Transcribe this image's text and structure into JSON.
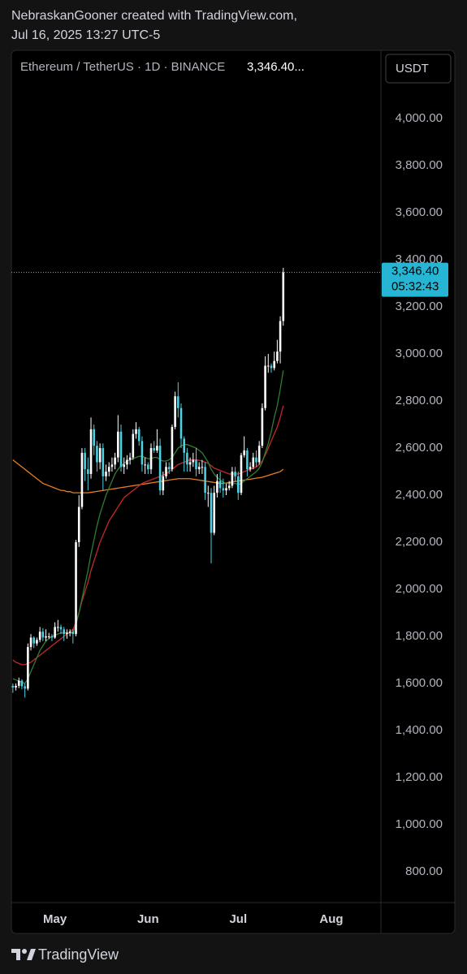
{
  "chart_data": {
    "type": "candlestick",
    "title": "NebraskanGooner created with TradingView.com,",
    "subtitle": "Jul 16, 2025 13:27 UTC-5",
    "symbol": "Ethereum / TetherUS · 1D · BINANCE",
    "legend_price": "3,346.40...",
    "currency_button": "USDT",
    "brand": "TradingView",
    "last_price": {
      "value": 3346.4,
      "label": "3,346.40"
    },
    "countdown": "05:32:43",
    "up_color": "#ffffff",
    "down_color": "#4dd0e1",
    "ylim": [
      669,
      4290
    ],
    "yticks": [
      {
        "value": 800,
        "label": "800.00"
      },
      {
        "value": 1000,
        "label": "1,000.00"
      },
      {
        "value": 1200,
        "label": "1,200.00"
      },
      {
        "value": 1400,
        "label": "1,400.00"
      },
      {
        "value": 1600,
        "label": "1,600.00"
      },
      {
        "value": 1800,
        "label": "1,800.00"
      },
      {
        "value": 2000,
        "label": "2,000.00"
      },
      {
        "value": 2200,
        "label": "2,200.00"
      },
      {
        "value": 2400,
        "label": "2,400.00"
      },
      {
        "value": 2600,
        "label": "2,600.00"
      },
      {
        "value": 2800,
        "label": "2,800.00"
      },
      {
        "value": 3000,
        "label": "3,000.00"
      },
      {
        "value": 3200,
        "label": "3,200.00"
      },
      {
        "value": 3400,
        "label": "3,400.00"
      },
      {
        "value": 3600,
        "label": "3,600.00"
      },
      {
        "value": 3800,
        "label": "3,800.00"
      },
      {
        "value": 4000,
        "label": "4,000.00"
      }
    ],
    "grid": false,
    "categories": [
      null,
      null,
      null,
      null,
      null,
      null,
      null,
      null,
      null,
      null,
      null,
      null,
      null,
      null,
      "May",
      null,
      null,
      null,
      null,
      null,
      null,
      null,
      null,
      null,
      null,
      null,
      null,
      null,
      null,
      null,
      null,
      null,
      null,
      null,
      null,
      null,
      null,
      null,
      null,
      null,
      null,
      null,
      null,
      null,
      null,
      "Jun",
      null,
      null,
      null,
      null,
      null,
      null,
      null,
      null,
      null,
      null,
      null,
      null,
      null,
      null,
      null,
      null,
      null,
      null,
      null,
      null,
      null,
      null,
      null,
      null,
      null,
      null,
      null,
      null,
      null,
      "Jul",
      null,
      null,
      null,
      null,
      null,
      null,
      null,
      null,
      null,
      null,
      null,
      null,
      null,
      null,
      null,
      null,
      null,
      null,
      null,
      null,
      null,
      null,
      null,
      null,
      null,
      null,
      null,
      null,
      null,
      null,
      "Aug",
      null,
      null,
      null,
      null,
      null,
      null,
      null,
      null,
      null,
      null,
      null,
      null,
      null,
      null,
      null,
      null
    ],
    "open": [
      1590,
      1583,
      1590,
      1612,
      1588,
      1578,
      1755,
      1795,
      1770,
      1785,
      1820,
      1795,
      1800,
      1800,
      1795,
      1840,
      1840,
      1830,
      1810,
      1815,
      1820,
      1810,
      2200,
      2350,
      2580,
      2510,
      2490,
      2680,
      2610,
      2540,
      2600,
      2480,
      2500,
      2520,
      2530,
      2560,
      2670,
      2520,
      2530,
      2550,
      2560,
      2660,
      2680,
      2630,
      2530,
      2530,
      2510,
      2600,
      2590,
      2610,
      2420,
      2480,
      2520,
      2510,
      2690,
      2820,
      2770,
      2640,
      2580,
      2530,
      2540,
      2550,
      2510,
      2520,
      2520,
      2410,
      2410,
      2240,
      2410,
      2460,
      2430,
      2420,
      2430,
      2440,
      2500,
      2480,
      2410,
      2570,
      2590,
      2510,
      2520,
      2560,
      2540,
      2610,
      2770,
      2950,
      2950,
      2940,
      2970,
      3010,
      3140,
      null,
      null,
      null,
      null,
      null,
      null,
      null,
      null,
      null,
      null,
      null,
      null,
      null,
      null,
      null,
      null,
      null,
      null,
      null,
      null,
      null,
      null,
      null,
      null,
      null,
      null,
      null,
      null,
      null,
      null,
      null,
      null
    ],
    "high": [
      1600,
      1600,
      1625,
      1618,
      1600,
      1770,
      1810,
      1800,
      1795,
      1840,
      1835,
      1830,
      1815,
      1810,
      1860,
      1870,
      1850,
      1840,
      1830,
      1830,
      1830,
      2210,
      2400,
      2600,
      2600,
      2560,
      2730,
      2700,
      2630,
      2620,
      2620,
      2530,
      2540,
      2560,
      2580,
      2740,
      2700,
      2560,
      2570,
      2580,
      2680,
      2710,
      2690,
      2650,
      2560,
      2540,
      2620,
      2630,
      2680,
      2640,
      2500,
      2540,
      2540,
      2700,
      2840,
      2880,
      2790,
      2650,
      2600,
      2560,
      2580,
      2600,
      2540,
      2550,
      2540,
      2440,
      2430,
      2440,
      2490,
      2500,
      2470,
      2450,
      2460,
      2520,
      2520,
      2500,
      2580,
      2650,
      2600,
      2540,
      2580,
      2590,
      2630,
      2790,
      2990,
      3000,
      2960,
      3010,
      3060,
      3160,
      3366,
      null,
      null,
      null,
      null,
      null,
      null,
      null,
      null,
      null,
      null,
      null,
      null,
      null,
      null,
      null,
      null,
      null,
      null,
      null,
      null,
      null,
      null,
      null,
      null,
      null,
      null,
      null,
      null,
      null,
      null,
      null,
      null
    ],
    "low": [
      1560,
      1570,
      1580,
      1575,
      1540,
      1570,
      1740,
      1750,
      1760,
      1775,
      1780,
      1780,
      1790,
      1780,
      1790,
      1820,
      1810,
      1780,
      1790,
      1800,
      1770,
      1800,
      2180,
      2340,
      2460,
      2420,
      2470,
      2570,
      2500,
      2510,
      2420,
      2460,
      2480,
      2500,
      2510,
      2540,
      2500,
      2490,
      2510,
      2530,
      2550,
      2640,
      2610,
      2500,
      2490,
      2490,
      2490,
      2580,
      2580,
      2400,
      2400,
      2470,
      2490,
      2500,
      2680,
      2730,
      2600,
      2500,
      2500,
      2500,
      2520,
      2480,
      2490,
      2490,
      2380,
      2350,
      2110,
      2230,
      2390,
      2410,
      2390,
      2400,
      2420,
      2430,
      2460,
      2380,
      2400,
      2560,
      2480,
      2500,
      2510,
      2520,
      2530,
      2600,
      2760,
      2920,
      2920,
      2930,
      2960,
      2960,
      3120,
      null,
      null,
      null,
      null,
      null,
      null,
      null,
      null,
      null,
      null,
      null,
      null,
      null,
      null,
      null,
      null,
      null,
      null,
      null,
      null,
      null,
      null,
      null,
      null,
      null,
      null,
      null,
      null,
      null,
      null,
      null,
      null
    ],
    "close": [
      1583,
      1590,
      1612,
      1588,
      1578,
      1755,
      1795,
      1770,
      1785,
      1820,
      1795,
      1800,
      1800,
      1795,
      1840,
      1840,
      1830,
      1810,
      1815,
      1820,
      1810,
      2200,
      2350,
      2580,
      2510,
      2490,
      2680,
      2610,
      2540,
      2600,
      2480,
      2500,
      2520,
      2530,
      2560,
      2670,
      2520,
      2530,
      2550,
      2560,
      2660,
      2680,
      2630,
      2530,
      2530,
      2510,
      2600,
      2590,
      2610,
      2420,
      2480,
      2520,
      2510,
      2690,
      2820,
      2770,
      2640,
      2580,
      2530,
      2540,
      2550,
      2510,
      2520,
      2520,
      2410,
      2410,
      2240,
      2410,
      2460,
      2430,
      2420,
      2430,
      2440,
      2500,
      2480,
      2410,
      2570,
      2590,
      2510,
      2520,
      2560,
      2540,
      2610,
      2770,
      2950,
      2950,
      2940,
      2970,
      3010,
      3140,
      3346.4,
      null,
      null,
      null,
      null,
      null,
      null,
      null,
      null,
      null,
      null,
      null,
      null,
      null,
      null,
      null,
      null,
      null,
      null,
      null,
      null,
      null,
      null,
      null,
      null,
      null,
      null,
      null,
      null,
      null,
      null,
      null,
      null
    ],
    "lines": [
      {
        "color": "#e67e22",
        "values": [
          2550,
          2540,
          2530,
          2520,
          2510,
          2500,
          2490,
          2480,
          2470,
          2460,
          2450,
          2445,
          2440,
          2435,
          2430,
          2425,
          2420,
          2420,
          2415,
          2415,
          2410,
          2410,
          2410,
          2410,
          2410,
          2410,
          2412,
          2414,
          2416,
          2418,
          2420,
          2422,
          2424,
          2426,
          2428,
          2430,
          2432,
          2434,
          2436,
          2438,
          2440,
          2442,
          2444,
          2446,
          2448,
          2450,
          2452,
          2454,
          2456,
          2458,
          2460,
          2462,
          2464,
          2466,
          2468,
          2470,
          2470,
          2470,
          2470,
          2470,
          2468,
          2466,
          2464,
          2462,
          2460,
          2458,
          2456,
          2454,
          2452,
          2450,
          2450,
          2452,
          2454,
          2456,
          2458,
          2460,
          2462,
          2464,
          2466,
          2468,
          2470,
          2472,
          2474,
          2476,
          2480,
          2484,
          2488,
          2492,
          2496,
          2500,
          2510,
          null,
          null,
          null,
          null,
          null,
          null,
          null,
          null,
          null,
          null,
          null,
          null,
          null,
          null,
          null,
          null,
          null,
          null,
          null,
          null,
          null,
          null,
          null,
          null,
          null,
          null,
          null,
          null,
          null,
          null,
          null,
          null
        ]
      },
      {
        "color": "#c62828",
        "values": [
          1700,
          1690,
          1685,
          1680,
          1680,
          1685,
          1690,
          1700,
          1710,
          1720,
          1730,
          1740,
          1750,
          1760,
          1770,
          1780,
          1790,
          1800,
          1810,
          1820,
          1830,
          1860,
          1900,
          1950,
          1990,
          2030,
          2080,
          2120,
          2160,
          2200,
          2230,
          2260,
          2290,
          2310,
          2330,
          2350,
          2370,
          2390,
          2400,
          2410,
          2420,
          2430,
          2440,
          2450,
          2455,
          2460,
          2465,
          2470,
          2475,
          2480,
          2485,
          2490,
          2500,
          2510,
          2520,
          2530,
          2535,
          2540,
          2545,
          2550,
          2550,
          2550,
          2548,
          2545,
          2540,
          2535,
          2525,
          2515,
          2510,
          2505,
          2500,
          2495,
          2490,
          2490,
          2490,
          2490,
          2495,
          2500,
          2505,
          2510,
          2515,
          2520,
          2530,
          2545,
          2570,
          2600,
          2630,
          2660,
          2690,
          2730,
          2780,
          null,
          null,
          null,
          null,
          null,
          null,
          null,
          null,
          null,
          null,
          null,
          null,
          null,
          null,
          null,
          null,
          null,
          null,
          null,
          null,
          null,
          null,
          null,
          null,
          null,
          null,
          null,
          null,
          null,
          null,
          null,
          null
        ]
      },
      {
        "color": "#2e7d32",
        "values": [
          1620,
          1615,
          1610,
          1605,
          1600,
          1620,
          1650,
          1680,
          1710,
          1740,
          1760,
          1780,
          1790,
          1800,
          1805,
          1810,
          1815,
          1815,
          1815,
          1815,
          1815,
          1850,
          1900,
          1960,
          2020,
          2080,
          2150,
          2210,
          2270,
          2320,
          2360,
          2400,
          2430,
          2460,
          2490,
          2510,
          2525,
          2535,
          2545,
          2550,
          2555,
          2560,
          2565,
          2565,
          2560,
          2555,
          2555,
          2560,
          2560,
          2550,
          2545,
          2545,
          2550,
          2560,
          2580,
          2600,
          2610,
          2615,
          2615,
          2610,
          2605,
          2600,
          2590,
          2580,
          2560,
          2540,
          2510,
          2490,
          2475,
          2465,
          2455,
          2450,
          2450,
          2450,
          2450,
          2445,
          2450,
          2460,
          2470,
          2480,
          2490,
          2500,
          2515,
          2540,
          2580,
          2620,
          2670,
          2730,
          2780,
          2850,
          2930,
          null,
          null,
          null,
          null,
          null,
          null,
          null,
          null,
          null,
          null,
          null,
          null,
          null,
          null,
          null,
          null,
          null,
          null,
          null,
          null,
          null,
          null,
          null,
          null,
          null,
          null,
          null,
          null,
          null,
          null,
          null,
          null
        ]
      }
    ]
  }
}
